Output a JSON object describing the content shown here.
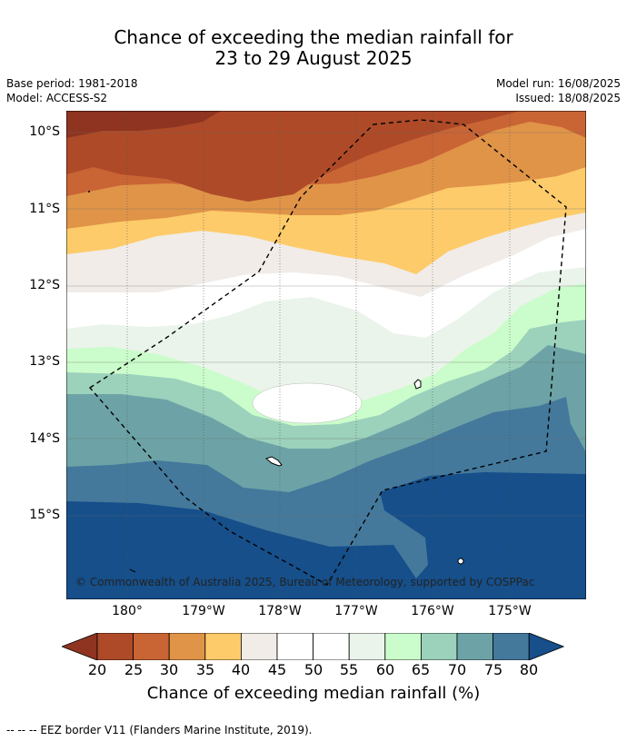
{
  "title": {
    "line1": "Chance of exceeding the median rainfall for",
    "line2": "23 to 29 August 2025"
  },
  "meta": {
    "base_period": "Base period: 1981-2018",
    "model": "Model: ACCESS-S2",
    "model_run": "Model run: 16/08/2025",
    "issued": "Issued: 18/08/2025"
  },
  "map": {
    "lat_labels": [
      "10°S",
      "11°S",
      "12°S",
      "13°S",
      "14°S",
      "15°S"
    ],
    "lon_labels": [
      "180°",
      "179°W",
      "178°W",
      "177°W",
      "176°W",
      "175°W"
    ],
    "copyright": "© Commonwealth of Australia 2025, Bureau of Meteorology, supported by COSPPac"
  },
  "legend": {
    "ticks": [
      "20",
      "25",
      "30",
      "35",
      "40",
      "45",
      "50",
      "55",
      "60",
      "65",
      "70",
      "75",
      "80"
    ],
    "colors": [
      "#8e3420",
      "#ae4a28",
      "#c96434",
      "#e09448",
      "#fdcb6a",
      "#f1ece7",
      "#ffffff",
      "#ffffff",
      "#eaf4ea",
      "#cbfccb",
      "#9cd1bc",
      "#6da3a6",
      "#44799c",
      "#164f8a"
    ],
    "label": "Chance of exceeding median rainfall (%)"
  },
  "footer": "--  --  -- EEZ border V11 (Flanders Marine Institute, 2019)."
}
